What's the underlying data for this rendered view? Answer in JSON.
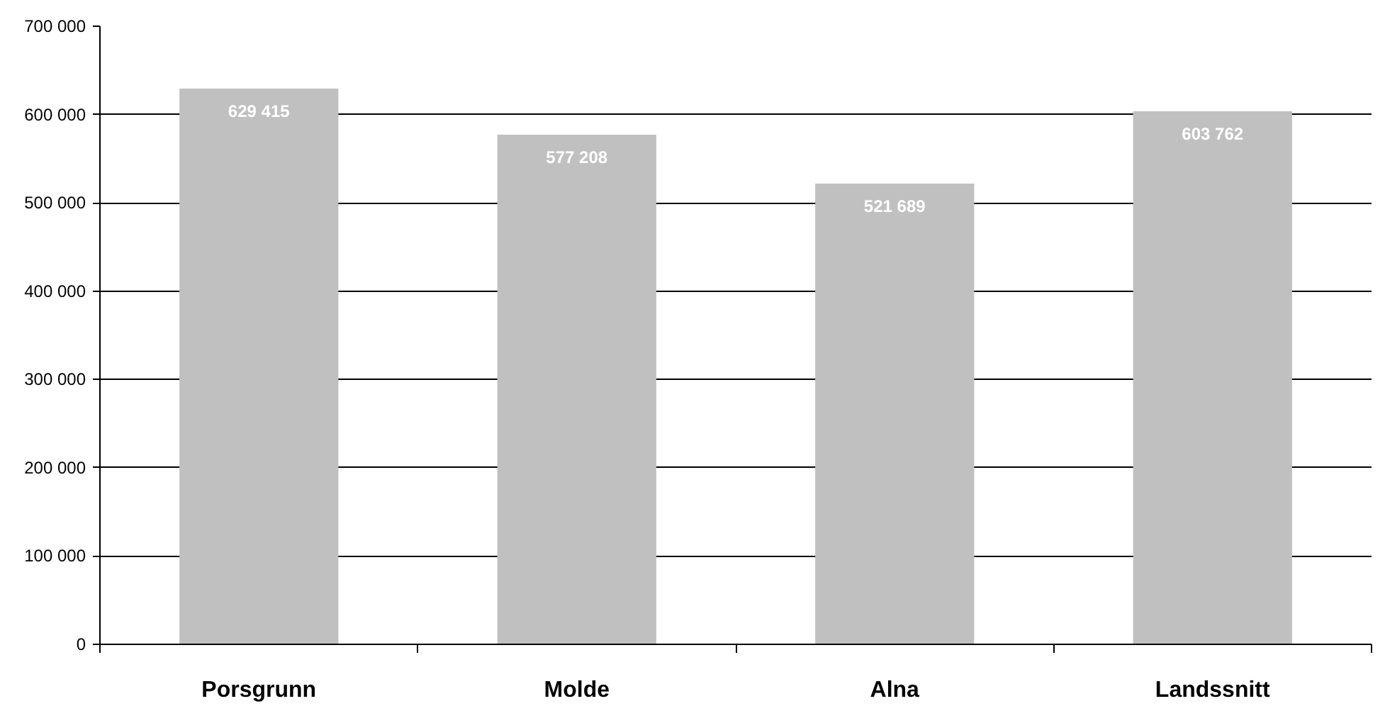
{
  "chart_data": {
    "type": "bar",
    "categories": [
      "Porsgrunn",
      "Molde",
      "Alna",
      "Landssnitt"
    ],
    "values": [
      629415,
      577208,
      521689,
      603762
    ],
    "color": "#c0c0c0",
    "data_labels": true,
    "ylim": [
      0,
      700000
    ],
    "yticks": [
      {
        "value": 0,
        "label": "0"
      },
      {
        "value": 100000,
        "label": "100 000"
      },
      {
        "value": 200000,
        "label": "200 000"
      },
      {
        "value": 300000,
        "label": "300 000"
      },
      {
        "value": 400000,
        "label": "400 000"
      },
      {
        "value": 500000,
        "label": "500 000"
      },
      {
        "value": 600000,
        "label": "600 000"
      },
      {
        "value": 700000,
        "label": "700 000"
      }
    ],
    "grid": "y"
  }
}
